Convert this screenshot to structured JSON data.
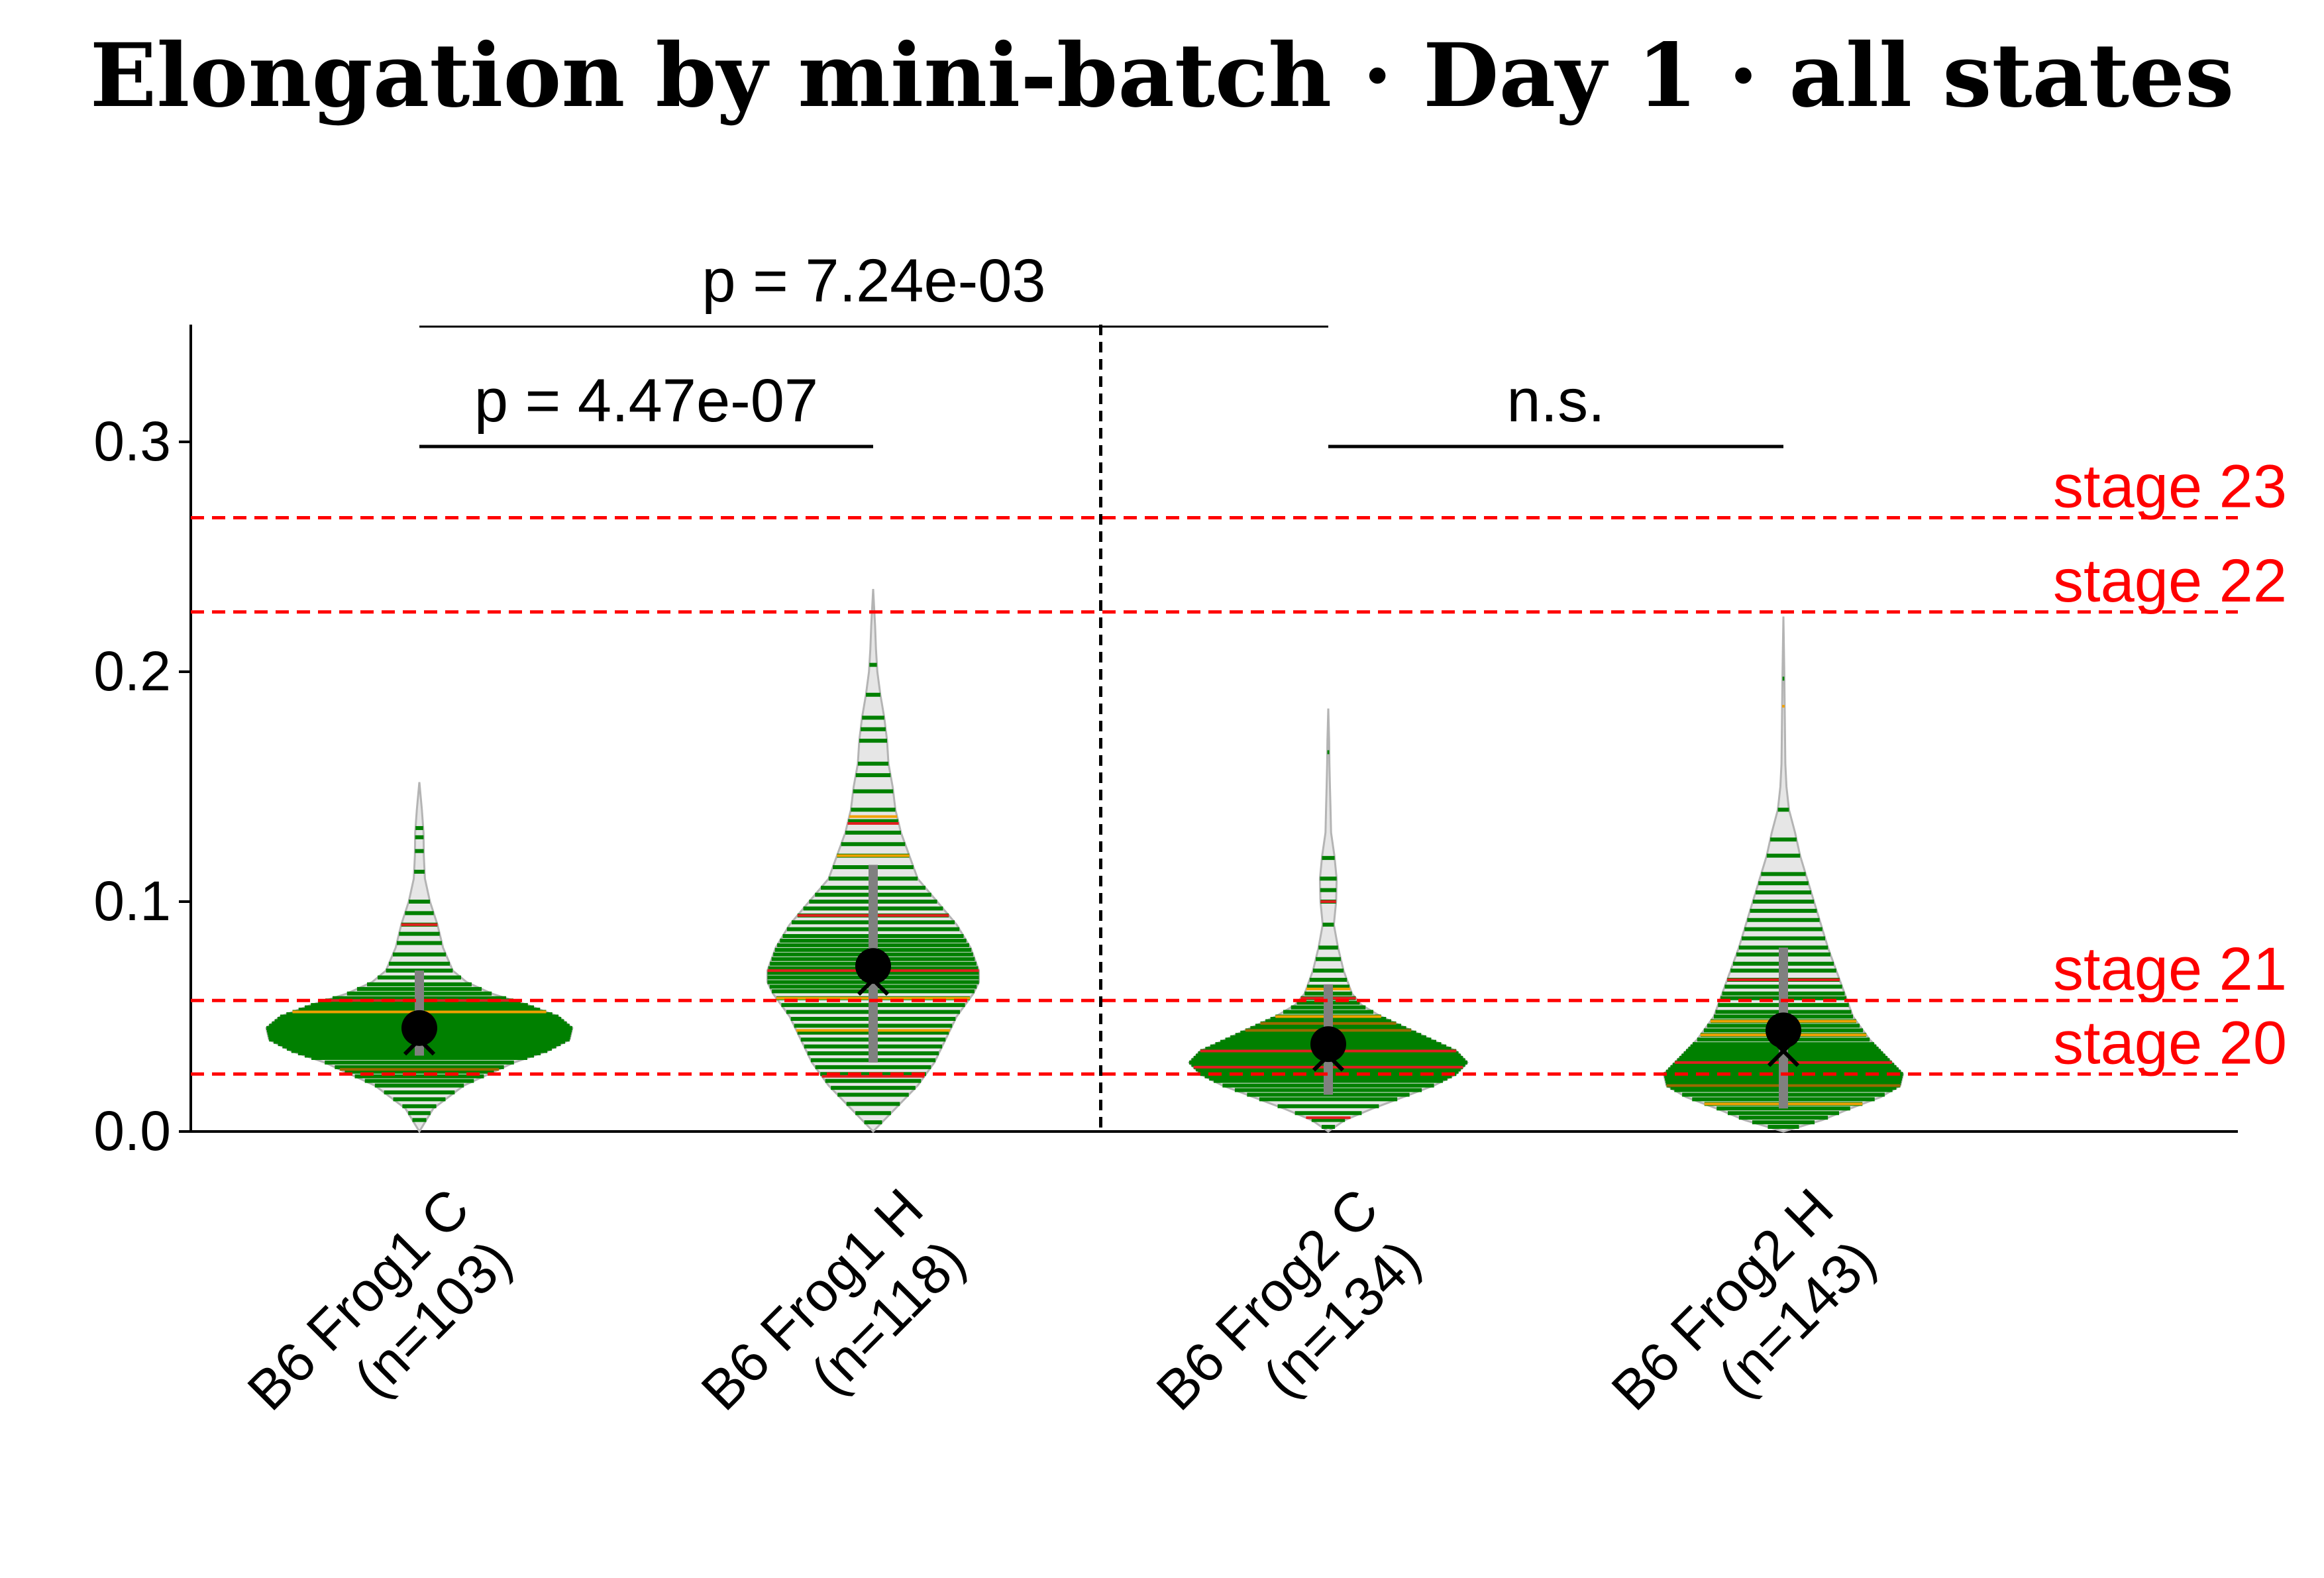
{
  "colors": {
    "stage_line": "#ff0000",
    "violin_fill": "#e6e6e6",
    "violin_edge": "#b4b4b4",
    "stripe_main": "#008000",
    "stripe_alt1": "#f0a000",
    "stripe_alt2": "#e02020",
    "stripe_alt3": "#9a6a00",
    "box_whisker": "#808080",
    "marker": "#000000"
  },
  "chart_data": {
    "type": "violin",
    "title": "Elongation by mini-batch · Day 1 · all states",
    "xlabel": "",
    "ylabel": "",
    "ylim": [
      0.0,
      0.35
    ],
    "yticks": [
      {
        "value": 0.0,
        "label": "0.0"
      },
      {
        "value": 0.1,
        "label": "0.1"
      },
      {
        "value": 0.2,
        "label": "0.2"
      },
      {
        "value": 0.3,
        "label": "0.3"
      }
    ],
    "categories": [
      {
        "line1": "B6 Frog1 C",
        "line2": "(n=103)"
      },
      {
        "line1": "B6 Frog1 H",
        "line2": "(n=118)"
      },
      {
        "line1": "B6 Frog2 C",
        "line2": "(n=134)"
      },
      {
        "line1": "B6 Frog2 H",
        "line2": "(n=143)"
      }
    ],
    "groups": [
      {
        "mean": 0.045,
        "median": 0.04,
        "q1": 0.033,
        "q3": 0.07,
        "min": 0.0,
        "max": 0.152,
        "density": [
          [
            0.0,
            0.0
          ],
          [
            0.01,
            0.5
          ],
          [
            0.02,
            1.6
          ],
          [
            0.03,
            3.4
          ],
          [
            0.035,
            4.6
          ],
          [
            0.04,
            5.4
          ],
          [
            0.045,
            5.5
          ],
          [
            0.05,
            5.0
          ],
          [
            0.055,
            3.9
          ],
          [
            0.06,
            2.6
          ],
          [
            0.065,
            1.7
          ],
          [
            0.07,
            1.2
          ],
          [
            0.08,
            0.85
          ],
          [
            0.09,
            0.65
          ],
          [
            0.1,
            0.38
          ],
          [
            0.11,
            0.2
          ],
          [
            0.12,
            0.16
          ],
          [
            0.13,
            0.15
          ],
          [
            0.14,
            0.09
          ],
          [
            0.152,
            0.0
          ]
        ],
        "stripes": [
          0.005,
          0.008,
          0.011,
          0.014,
          0.017,
          0.02,
          0.022,
          0.024,
          0.026,
          0.028,
          0.03,
          0.032,
          0.033,
          0.034,
          0.035,
          0.036,
          0.037,
          0.038,
          0.039,
          0.04,
          0.041,
          0.042,
          0.043,
          0.044,
          0.045,
          0.046,
          0.047,
          0.048,
          0.049,
          0.05,
          0.051,
          0.052,
          0.053,
          0.054,
          0.055,
          0.056,
          0.057,
          0.058,
          0.06,
          0.062,
          0.064,
          0.067,
          0.07,
          0.073,
          0.077,
          0.082,
          0.086,
          0.09,
          0.095,
          0.1,
          0.113,
          0.122,
          0.128,
          0.132
        ],
        "accent": [
          [
            0.052,
            "alt1"
          ],
          [
            0.057,
            "alt2"
          ],
          [
            0.09,
            "alt2"
          ],
          [
            0.027,
            "alt3"
          ]
        ]
      },
      {
        "mean": 0.072,
        "median": 0.066,
        "q1": 0.03,
        "q3": 0.116,
        "min": 0.0,
        "max": 0.236,
        "density": [
          [
            0.0,
            0.0
          ],
          [
            0.01,
            0.8
          ],
          [
            0.02,
            1.6
          ],
          [
            0.03,
            2.2
          ],
          [
            0.04,
            2.6
          ],
          [
            0.05,
            3.0
          ],
          [
            0.06,
            3.6
          ],
          [
            0.065,
            3.8
          ],
          [
            0.07,
            3.8
          ],
          [
            0.08,
            3.5
          ],
          [
            0.09,
            3.0
          ],
          [
            0.1,
            2.3
          ],
          [
            0.11,
            1.6
          ],
          [
            0.12,
            1.3
          ],
          [
            0.13,
            1.0
          ],
          [
            0.14,
            0.8
          ],
          [
            0.15,
            0.7
          ],
          [
            0.16,
            0.55
          ],
          [
            0.17,
            0.5
          ],
          [
            0.18,
            0.4
          ],
          [
            0.19,
            0.26
          ],
          [
            0.2,
            0.15
          ],
          [
            0.21,
            0.1
          ],
          [
            0.22,
            0.07
          ],
          [
            0.236,
            0.0
          ]
        ],
        "stripes": [
          0.004,
          0.008,
          0.012,
          0.016,
          0.019,
          0.022,
          0.025,
          0.028,
          0.031,
          0.034,
          0.037,
          0.04,
          0.043,
          0.046,
          0.049,
          0.052,
          0.055,
          0.058,
          0.061,
          0.063,
          0.065,
          0.067,
          0.069,
          0.071,
          0.073,
          0.075,
          0.077,
          0.079,
          0.081,
          0.083,
          0.085,
          0.088,
          0.091,
          0.094,
          0.097,
          0.1,
          0.103,
          0.106,
          0.11,
          0.115,
          0.12,
          0.125,
          0.13,
          0.135,
          0.14,
          0.148,
          0.155,
          0.16,
          0.17,
          0.175,
          0.18,
          0.19,
          0.203
        ],
        "accent": [
          [
            0.024,
            "alt2"
          ],
          [
            0.044,
            "alt1"
          ],
          [
            0.058,
            "alt1"
          ],
          [
            0.07,
            "alt2"
          ],
          [
            0.094,
            "alt2"
          ],
          [
            0.12,
            "alt1"
          ],
          [
            0.134,
            "alt2"
          ],
          [
            0.137,
            "alt1"
          ]
        ]
      },
      {
        "mean": 0.038,
        "median": 0.033,
        "q1": 0.016,
        "q3": 0.064,
        "min": 0.0,
        "max": 0.184,
        "density": [
          [
            0.0,
            0.0
          ],
          [
            0.005,
            0.6
          ],
          [
            0.01,
            1.6
          ],
          [
            0.02,
            3.8
          ],
          [
            0.025,
            4.6
          ],
          [
            0.03,
            5.0
          ],
          [
            0.035,
            4.6
          ],
          [
            0.04,
            3.7
          ],
          [
            0.045,
            2.8
          ],
          [
            0.05,
            1.9
          ],
          [
            0.055,
            1.2
          ],
          [
            0.06,
            0.85
          ],
          [
            0.07,
            0.55
          ],
          [
            0.08,
            0.35
          ],
          [
            0.09,
            0.2
          ],
          [
            0.1,
            0.28
          ],
          [
            0.11,
            0.3
          ],
          [
            0.12,
            0.22
          ],
          [
            0.13,
            0.1
          ],
          [
            0.14,
            0.08
          ],
          [
            0.15,
            0.06
          ],
          [
            0.16,
            0.04
          ],
          [
            0.17,
            0.03
          ],
          [
            0.184,
            0.0
          ]
        ],
        "stripes": [
          0.002,
          0.005,
          0.008,
          0.011,
          0.014,
          0.016,
          0.018,
          0.02,
          0.022,
          0.023,
          0.024,
          0.025,
          0.026,
          0.027,
          0.028,
          0.029,
          0.03,
          0.031,
          0.032,
          0.033,
          0.034,
          0.035,
          0.036,
          0.037,
          0.038,
          0.039,
          0.04,
          0.041,
          0.042,
          0.043,
          0.044,
          0.045,
          0.046,
          0.047,
          0.048,
          0.049,
          0.05,
          0.052,
          0.054,
          0.056,
          0.058,
          0.06,
          0.063,
          0.066,
          0.07,
          0.075,
          0.08,
          0.09,
          0.1,
          0.105,
          0.11,
          0.119,
          0.165
        ],
        "accent": [
          [
            0.006,
            "alt2"
          ],
          [
            0.028,
            "alt2"
          ],
          [
            0.035,
            "alt2"
          ],
          [
            0.044,
            "alt3"
          ],
          [
            0.047,
            "alt3"
          ],
          [
            0.05,
            "alt1"
          ],
          [
            0.058,
            "alt2"
          ],
          [
            0.062,
            "alt1"
          ],
          [
            0.1,
            "alt2"
          ]
        ]
      },
      {
        "mean": 0.044,
        "median": 0.035,
        "q1": 0.01,
        "q3": 0.08,
        "min": 0.0,
        "max": 0.224,
        "density": [
          [
            0.0,
            0.0
          ],
          [
            0.005,
            1.4
          ],
          [
            0.01,
            2.4
          ],
          [
            0.015,
            3.5
          ],
          [
            0.02,
            4.2
          ],
          [
            0.025,
            4.3
          ],
          [
            0.03,
            3.9
          ],
          [
            0.035,
            3.5
          ],
          [
            0.04,
            3.1
          ],
          [
            0.05,
            2.5
          ],
          [
            0.06,
            2.2
          ],
          [
            0.07,
            1.9
          ],
          [
            0.08,
            1.6
          ],
          [
            0.09,
            1.35
          ],
          [
            0.1,
            1.1
          ],
          [
            0.11,
            0.85
          ],
          [
            0.12,
            0.6
          ],
          [
            0.13,
            0.42
          ],
          [
            0.14,
            0.2
          ],
          [
            0.15,
            0.11
          ],
          [
            0.16,
            0.07
          ],
          [
            0.18,
            0.05
          ],
          [
            0.2,
            0.03
          ],
          [
            0.224,
            0.0
          ]
        ],
        "stripes": [
          0.002,
          0.004,
          0.006,
          0.008,
          0.01,
          0.012,
          0.014,
          0.016,
          0.018,
          0.019,
          0.02,
          0.021,
          0.022,
          0.023,
          0.024,
          0.025,
          0.026,
          0.027,
          0.028,
          0.029,
          0.03,
          0.031,
          0.032,
          0.033,
          0.034,
          0.035,
          0.036,
          0.037,
          0.038,
          0.04,
          0.042,
          0.044,
          0.046,
          0.048,
          0.05,
          0.052,
          0.055,
          0.058,
          0.06,
          0.063,
          0.066,
          0.07,
          0.073,
          0.077,
          0.08,
          0.084,
          0.088,
          0.092,
          0.096,
          0.1,
          0.104,
          0.108,
          0.112,
          0.12,
          0.127,
          0.14,
          0.197
        ],
        "accent": [
          [
            0.012,
            "alt1"
          ],
          [
            0.02,
            "alt3"
          ],
          [
            0.03,
            "alt2"
          ],
          [
            0.042,
            "alt1"
          ],
          [
            0.048,
            "alt1"
          ],
          [
            0.066,
            "alt2"
          ],
          [
            0.185,
            "alt1"
          ]
        ]
      }
    ],
    "stage_lines": [
      {
        "value": 0.025,
        "label": "stage 20"
      },
      {
        "value": 0.057,
        "label": "stage 21"
      },
      {
        "value": 0.226,
        "label": "stage 22"
      },
      {
        "value": 0.267,
        "label": "stage 23"
      }
    ],
    "brackets": [
      {
        "from": 0,
        "to": 1,
        "y": 0.298,
        "label": "p = 4.47e-07"
      },
      {
        "from": 2,
        "to": 3,
        "y": 0.298,
        "label": "n.s."
      },
      {
        "from": 0,
        "to": 2,
        "y": 0.35,
        "label": "p = 7.24e-03"
      }
    ],
    "divider_between": [
      1,
      2
    ]
  }
}
